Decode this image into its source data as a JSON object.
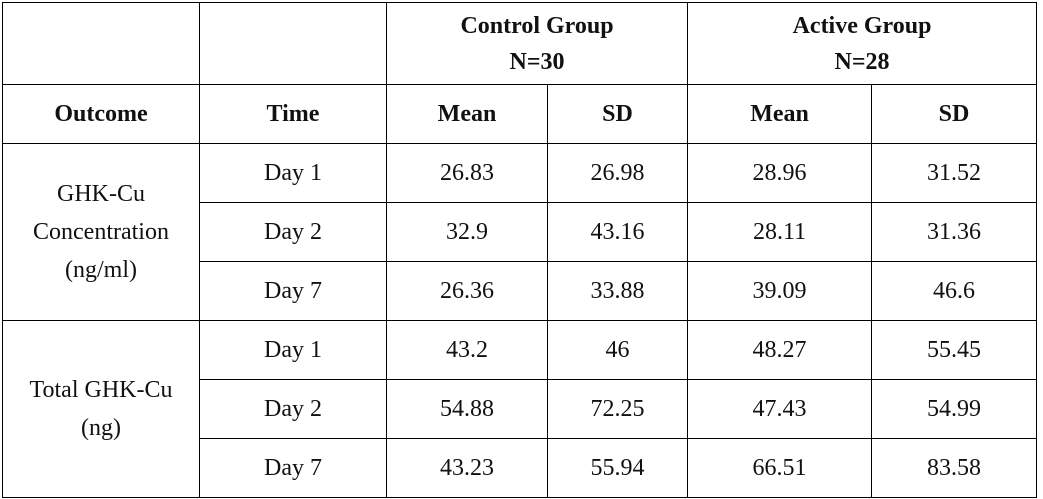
{
  "table": {
    "group_headers": [
      {
        "name": "Control Group",
        "n": "N=30"
      },
      {
        "name": "Active Group",
        "n": "N=28"
      }
    ],
    "columns": [
      "Outcome",
      "Time",
      "Mean",
      "SD",
      "Mean",
      "SD"
    ],
    "outcomes": [
      {
        "label": "GHK-Cu Concentration (ng/ml)",
        "rows": [
          [
            "Day 1",
            26.83,
            26.98,
            28.96,
            31.52
          ],
          [
            "Day 2",
            32.9,
            43.16,
            28.11,
            31.36
          ],
          [
            "Day 7",
            26.36,
            33.88,
            39.09,
            46.6
          ]
        ]
      },
      {
        "label": "Total GHK-Cu (ng)",
        "rows": [
          [
            "Day 1",
            43.2,
            46,
            48.27,
            55.45
          ],
          [
            "Day 2",
            54.88,
            72.25,
            47.43,
            54.99
          ],
          [
            "Day 7",
            43.23,
            55.94,
            66.51,
            83.58
          ]
        ]
      }
    ]
  }
}
